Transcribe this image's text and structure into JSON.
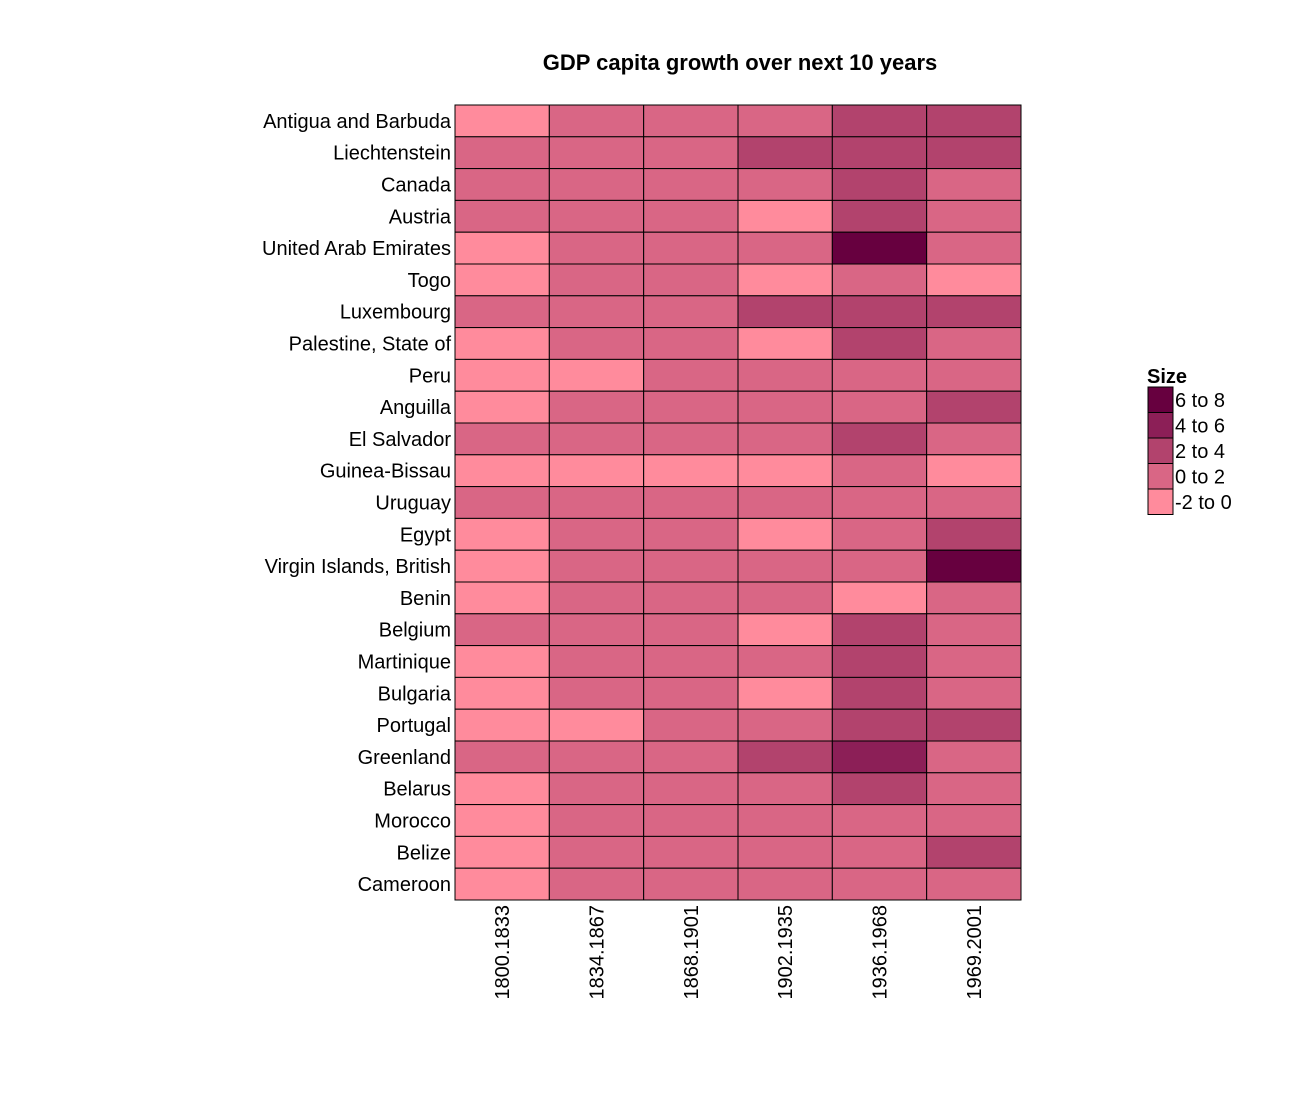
{
  "chart_data": {
    "type": "heatmap",
    "title": "GDP capita growth over next 10 years",
    "xlabel": "",
    "ylabel": "",
    "columns": [
      "1800.1833",
      "1834.1867",
      "1868.1901",
      "1902.1935",
      "1936.1968",
      "1969.2001"
    ],
    "rows": [
      "Antigua and Barbuda",
      "Liechtenstein",
      "Canada",
      "Austria",
      "United Arab Emirates",
      "Togo",
      "Luxembourg",
      "Palestine, State of",
      "Peru",
      "Anguilla",
      "El Salvador",
      "Guinea-Bissau",
      "Uruguay",
      "Egypt",
      "Virgin Islands, British",
      "Benin",
      "Belgium",
      "Martinique",
      "Bulgaria",
      "Portugal",
      "Greenland",
      "Belarus",
      "Morocco",
      "Belize",
      "Cameroon"
    ],
    "bin_index_note_free": true,
    "legend": {
      "title": "Size",
      "bins": [
        {
          "label": "6 to 8",
          "color": "#67003f"
        },
        {
          "label": "4 to 6",
          "color": "#8c1f57"
        },
        {
          "label": "2 to 4",
          "color": "#b2436d"
        },
        {
          "label": "0 to 2",
          "color": "#d96685"
        },
        {
          "label": "-2 to 0",
          "color": "#ff8b9c"
        }
      ]
    },
    "values": [
      [
        "-2 to 0",
        "0 to 2",
        "0 to 2",
        "0 to 2",
        "2 to 4",
        "2 to 4"
      ],
      [
        "0 to 2",
        "0 to 2",
        "0 to 2",
        "2 to 4",
        "2 to 4",
        "2 to 4"
      ],
      [
        "0 to 2",
        "0 to 2",
        "0 to 2",
        "0 to 2",
        "2 to 4",
        "0 to 2"
      ],
      [
        "0 to 2",
        "0 to 2",
        "0 to 2",
        "-2 to 0",
        "2 to 4",
        "0 to 2"
      ],
      [
        "-2 to 0",
        "0 to 2",
        "0 to 2",
        "0 to 2",
        "6 to 8",
        "0 to 2"
      ],
      [
        "-2 to 0",
        "0 to 2",
        "0 to 2",
        "-2 to 0",
        "0 to 2",
        "-2 to 0"
      ],
      [
        "0 to 2",
        "0 to 2",
        "0 to 2",
        "2 to 4",
        "2 to 4",
        "2 to 4"
      ],
      [
        "-2 to 0",
        "0 to 2",
        "0 to 2",
        "-2 to 0",
        "2 to 4",
        "0 to 2"
      ],
      [
        "-2 to 0",
        "-2 to 0",
        "0 to 2",
        "0 to 2",
        "0 to 2",
        "0 to 2"
      ],
      [
        "-2 to 0",
        "0 to 2",
        "0 to 2",
        "0 to 2",
        "0 to 2",
        "2 to 4"
      ],
      [
        "0 to 2",
        "0 to 2",
        "0 to 2",
        "0 to 2",
        "2 to 4",
        "0 to 2"
      ],
      [
        "-2 to 0",
        "-2 to 0",
        "-2 to 0",
        "-2 to 0",
        "0 to 2",
        "-2 to 0"
      ],
      [
        "0 to 2",
        "0 to 2",
        "0 to 2",
        "0 to 2",
        "0 to 2",
        "0 to 2"
      ],
      [
        "-2 to 0",
        "0 to 2",
        "0 to 2",
        "-2 to 0",
        "0 to 2",
        "2 to 4"
      ],
      [
        "-2 to 0",
        "0 to 2",
        "0 to 2",
        "0 to 2",
        "0 to 2",
        "6 to 8"
      ],
      [
        "-2 to 0",
        "0 to 2",
        "0 to 2",
        "0 to 2",
        "-2 to 0",
        "0 to 2"
      ],
      [
        "0 to 2",
        "0 to 2",
        "0 to 2",
        "-2 to 0",
        "2 to 4",
        "0 to 2"
      ],
      [
        "-2 to 0",
        "0 to 2",
        "0 to 2",
        "0 to 2",
        "2 to 4",
        "0 to 2"
      ],
      [
        "-2 to 0",
        "0 to 2",
        "0 to 2",
        "-2 to 0",
        "2 to 4",
        "0 to 2"
      ],
      [
        "-2 to 0",
        "-2 to 0",
        "0 to 2",
        "0 to 2",
        "2 to 4",
        "2 to 4"
      ],
      [
        "0 to 2",
        "0 to 2",
        "0 to 2",
        "2 to 4",
        "4 to 6",
        "0 to 2"
      ],
      [
        "-2 to 0",
        "0 to 2",
        "0 to 2",
        "0 to 2",
        "2 to 4",
        "0 to 2"
      ],
      [
        "-2 to 0",
        "0 to 2",
        "0 to 2",
        "0 to 2",
        "0 to 2",
        "0 to 2"
      ],
      [
        "-2 to 0",
        "0 to 2",
        "0 to 2",
        "0 to 2",
        "0 to 2",
        "2 to 4"
      ],
      [
        "-2 to 0",
        "0 to 2",
        "0 to 2",
        "0 to 2",
        "0 to 2",
        "0 to 2"
      ]
    ]
  }
}
